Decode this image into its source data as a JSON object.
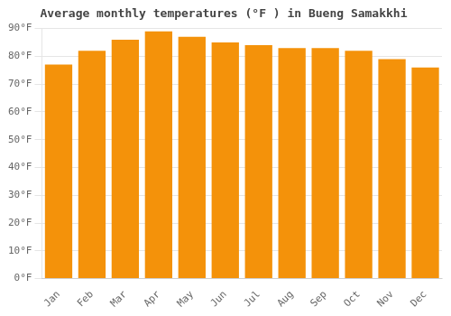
{
  "chart_data": {
    "type": "bar",
    "title": "Average monthly temperatures (°F ) in Bueng Samakkhi",
    "categories": [
      "Jan",
      "Feb",
      "Mar",
      "Apr",
      "May",
      "Jun",
      "Jul",
      "Aug",
      "Sep",
      "Oct",
      "Nov",
      "Dec"
    ],
    "values": [
      77,
      82,
      86,
      89,
      87,
      85,
      84,
      83,
      83,
      82,
      79,
      76
    ],
    "color": "#F4920A",
    "ylim": [
      0,
      90
    ],
    "yticks": [
      {
        "value": 0,
        "label": "0°F"
      },
      {
        "value": 10,
        "label": "10°F"
      },
      {
        "value": 20,
        "label": "20°F"
      },
      {
        "value": 30,
        "label": "30°F"
      },
      {
        "value": 40,
        "label": "40°F"
      },
      {
        "value": 50,
        "label": "50°F"
      },
      {
        "value": 60,
        "label": "60°F"
      },
      {
        "value": 70,
        "label": "70°F"
      },
      {
        "value": 80,
        "label": "80°F"
      },
      {
        "value": 90,
        "label": "90°F"
      }
    ],
    "grid": true
  }
}
